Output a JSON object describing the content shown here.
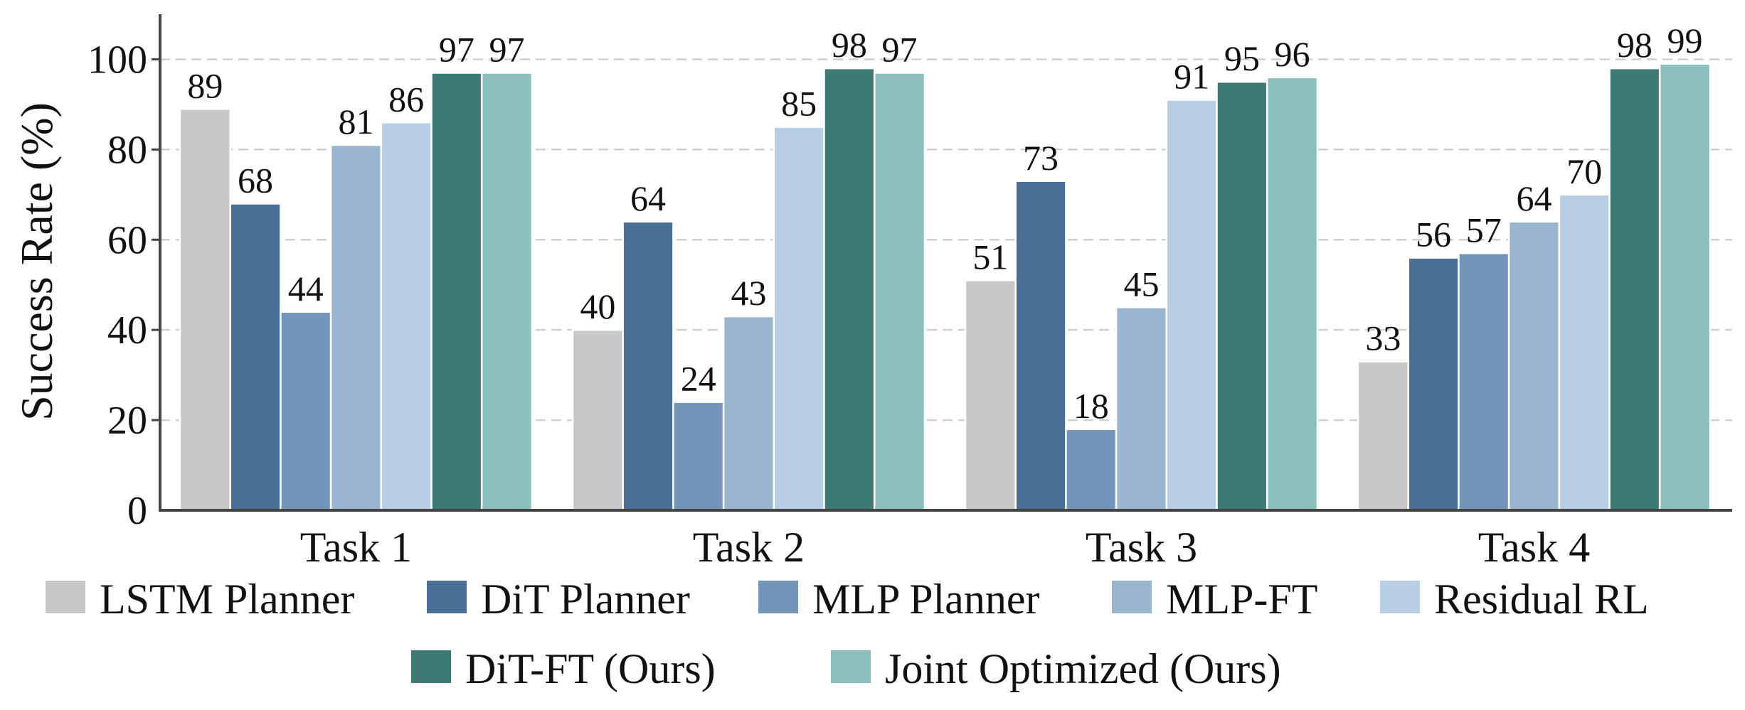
{
  "chart_data": {
    "type": "bar",
    "categories": [
      "Task 1",
      "Task 2",
      "Task 3",
      "Task 4"
    ],
    "series": [
      {
        "name": "LSTM Planner",
        "color": "#c8c8c8",
        "values": [
          89,
          40,
          51,
          33
        ]
      },
      {
        "name": "DiT Planner",
        "color": "#4a6f96",
        "values": [
          68,
          64,
          73,
          56
        ]
      },
      {
        "name": "MLP Planner",
        "color": "#7196ba",
        "values": [
          44,
          24,
          18,
          57
        ]
      },
      {
        "name": "MLP-FT",
        "color": "#98b4cf",
        "values": [
          81,
          43,
          45,
          64
        ]
      },
      {
        "name": "Residual RL",
        "color": "#b8cee5",
        "values": [
          86,
          85,
          91,
          70
        ]
      },
      {
        "name": "DiT-FT (Ours)",
        "color": "#3d7a74",
        "values": [
          97,
          98,
          95,
          98
        ]
      },
      {
        "name": "Joint Optimized (Ours)",
        "color": "#8bbfbb",
        "values": [
          97,
          97,
          96,
          99
        ]
      }
    ],
    "title": "",
    "xlabel": "",
    "ylabel": "Success Rate (%)",
    "ylim": [
      0,
      110
    ],
    "yticks": [
      0,
      20,
      40,
      60,
      80,
      100
    ],
    "grid": "horizontal dashed",
    "legend_placement": "bottom"
  }
}
